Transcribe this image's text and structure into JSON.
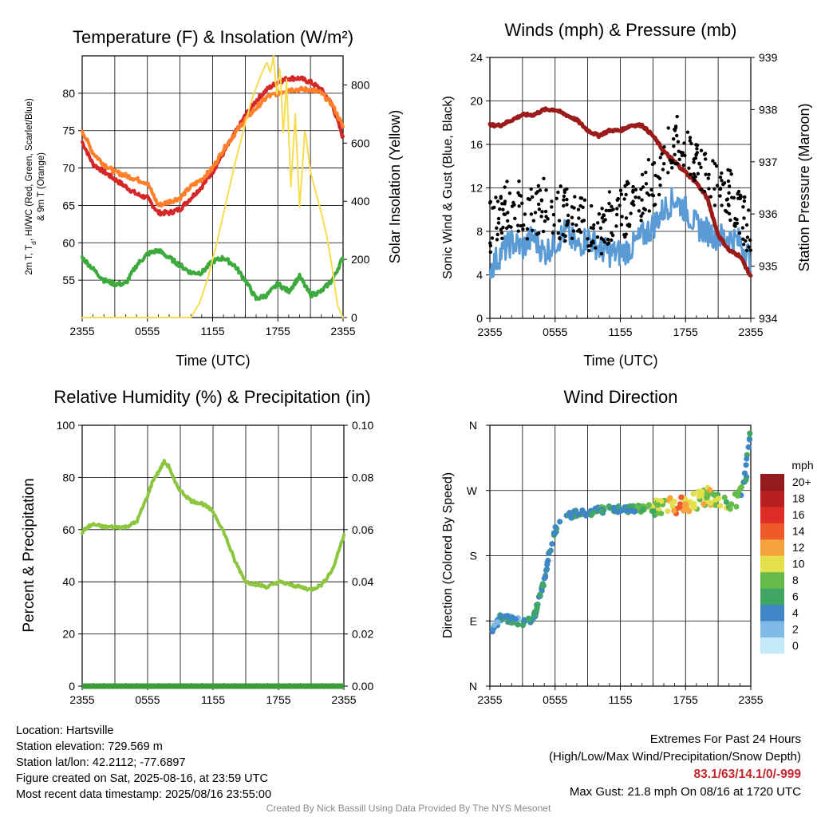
{
  "charts": {
    "temp": {
      "title": "Temperature (F) & Insolation (W/m²)",
      "xlabel": "Time (UTC)",
      "ylabel_line1": "2m T, T",
      "ylabel_sub": "d",
      "ylabel_line1_rest": ", HI/WC (Red, Green, Scarlet/Blue)",
      "ylabel_line2": "& 9m T (Orange)",
      "ylabel_right": "Solar Insolation (Yellow)"
    },
    "winds": {
      "title": "Winds (mph) & Pressure (mb)",
      "xlabel": "Time (UTC)",
      "ylabel": "Sonic Wind & Gust (Blue, Black)",
      "ylabel_right": "Station Pressure (Maroon)"
    },
    "rh": {
      "title": "Relative Humidity (%) & Precipitation (in)",
      "ylabel": "Percent & Precipitation"
    },
    "dir": {
      "title": "Wind Direction",
      "ylabel": "Direction (Colored By Speed)",
      "colorbar_title": "mph"
    }
  },
  "chart_data": [
    {
      "id": "temp",
      "type": "line",
      "x_ticks": [
        "2355",
        "0555",
        "1155",
        "1755",
        "2355"
      ],
      "x_range_hours": [
        0,
        24
      ],
      "ylim_left": [
        50,
        85
      ],
      "yticks_left": [
        55,
        60,
        65,
        70,
        75,
        80
      ],
      "ylim_right": [
        0,
        900
      ],
      "yticks_right": [
        0,
        200,
        400,
        600,
        800
      ],
      "grid": true,
      "series": [
        {
          "color": "#d62728",
          "axis": "left",
          "x": [
            0,
            1,
            2,
            3,
            4,
            5,
            6,
            7,
            8,
            9,
            10,
            11,
            12,
            13,
            14,
            15,
            16,
            17,
            18,
            19,
            20,
            21,
            22,
            23,
            24
          ],
          "values": [
            73.5,
            70.5,
            69.5,
            68.5,
            67.5,
            66.5,
            66.0,
            64.0,
            64.0,
            64.5,
            66.0,
            67.5,
            69.5,
            72.0,
            74.5,
            77.0,
            79.0,
            80.5,
            81.5,
            82.0,
            82.0,
            81.5,
            80.5,
            78.5,
            74.0
          ]
        },
        {
          "color": "#ff7f2a",
          "axis": "left",
          "x": [
            0,
            1,
            2,
            3,
            4,
            5,
            6,
            7,
            8,
            9,
            10,
            11,
            12,
            13,
            14,
            15,
            16,
            17,
            18,
            19,
            20,
            21,
            22,
            23,
            24
          ],
          "values": [
            75.0,
            72.0,
            70.5,
            69.5,
            69.0,
            68.5,
            68.0,
            65.0,
            65.5,
            66.0,
            67.5,
            68.5,
            70.0,
            72.5,
            74.5,
            76.5,
            78.0,
            79.5,
            80.0,
            80.5,
            80.5,
            80.5,
            80.0,
            78.5,
            75.5
          ]
        },
        {
          "color": "#3daa3d",
          "axis": "left",
          "x": [
            0,
            1,
            2,
            3,
            4,
            5,
            6,
            7,
            8,
            9,
            10,
            11,
            12,
            13,
            14,
            15,
            16,
            17,
            18,
            19,
            20,
            21,
            22,
            23,
            24
          ],
          "values": [
            58.0,
            56.5,
            55.0,
            54.5,
            54.5,
            57.0,
            58.5,
            59.0,
            58.0,
            57.0,
            56.0,
            56.0,
            57.5,
            58.0,
            57.0,
            55.0,
            52.5,
            53.0,
            54.5,
            53.5,
            55.5,
            53.0,
            53.5,
            55.0,
            58.0
          ]
        },
        {
          "color": "#f8dd50",
          "axis": "right",
          "x": [
            0,
            8,
            10.0,
            10.8,
            11.6,
            12.4,
            13.2,
            14.0,
            14.8,
            15.6,
            16.4,
            17.0,
            17.3,
            17.6,
            17.9,
            18.2,
            18.5,
            18.8,
            19.2,
            19.6,
            20.0,
            20.5,
            21.0,
            21.5,
            22.0,
            22.5,
            23.0,
            23.5,
            24
          ],
          "values": [
            0,
            0,
            0,
            50,
            140,
            260,
            390,
            520,
            640,
            750,
            830,
            880,
            840,
            900,
            760,
            870,
            620,
            820,
            450,
            700,
            380,
            650,
            500,
            430,
            360,
            280,
            170,
            40,
            0
          ]
        }
      ]
    },
    {
      "id": "winds",
      "type": "line",
      "x_ticks": [
        "2355",
        "0555",
        "1155",
        "1755",
        "2355"
      ],
      "x_range_hours": [
        0,
        24
      ],
      "ylim_left": [
        0,
        24
      ],
      "yticks_left": [
        0,
        4,
        8,
        12,
        16,
        20,
        24
      ],
      "ylim_right": [
        934,
        939
      ],
      "yticks_right": [
        934,
        935,
        936,
        937,
        938,
        939
      ],
      "grid": true,
      "series": [
        {
          "color": "#9b1b1b",
          "axis": "right",
          "x": [
            0,
            1,
            2,
            3,
            4,
            5,
            6,
            7,
            8,
            9,
            10,
            11,
            12,
            13,
            14,
            15,
            16,
            17,
            18,
            19,
            20,
            21,
            22,
            23,
            24
          ],
          "values": [
            937.7,
            937.7,
            937.8,
            937.9,
            937.9,
            938.0,
            938.0,
            937.9,
            937.8,
            937.6,
            937.5,
            937.6,
            937.6,
            937.7,
            937.7,
            937.5,
            937.2,
            937.0,
            936.8,
            936.6,
            936.3,
            935.6,
            935.3,
            935.2,
            934.8
          ]
        },
        {
          "color": "#5b9bd5",
          "axis": "left",
          "x": [
            0,
            1,
            2,
            3,
            4,
            5,
            6,
            7,
            8,
            9,
            10,
            11,
            12,
            13,
            14,
            15,
            16,
            17,
            18,
            19,
            20,
            21,
            22,
            23,
            24
          ],
          "values": [
            4.5,
            6.0,
            7.0,
            6.5,
            7.5,
            6.0,
            7.0,
            8.0,
            6.5,
            7.5,
            6.5,
            6.0,
            6.0,
            6.5,
            7.5,
            8.5,
            10.0,
            11.0,
            10.0,
            8.5,
            8.0,
            7.5,
            7.5,
            7.0,
            5.5
          ]
        },
        {
          "type": "scatter",
          "color": "#000000",
          "axis": "left",
          "name_hidden": "gust",
          "x": [
            0,
            1,
            2,
            3,
            4,
            5,
            6,
            7,
            8,
            9,
            10,
            11,
            12,
            13,
            14,
            15,
            16,
            17,
            18,
            19,
            20,
            21,
            22,
            23,
            24
          ],
          "values": [
            8.5,
            9.0,
            11.0,
            10.0,
            9.5,
            10.5,
            10.0,
            9.5,
            9.0,
            8.5,
            8.0,
            9.5,
            9.5,
            10.5,
            11.5,
            12.5,
            14.0,
            16.5,
            15.0,
            14.5,
            13.5,
            12.0,
            11.5,
            9.5,
            8.0
          ]
        }
      ]
    },
    {
      "id": "rh",
      "type": "line",
      "x_ticks": [
        "2355",
        "0555",
        "1155",
        "1755",
        "2355"
      ],
      "x_range_hours": [
        0,
        24
      ],
      "ylim_left": [
        0,
        100
      ],
      "yticks_left": [
        0,
        20,
        40,
        60,
        80,
        100
      ],
      "ylim_right": [
        0,
        0.1
      ],
      "yticks_right": [
        "0.00",
        "0.02",
        "0.04",
        "0.06",
        "0.08",
        "0.10"
      ],
      "grid": true,
      "series": [
        {
          "color": "#8cc63f",
          "axis": "left",
          "x": [
            0,
            0.5,
            1,
            2,
            3,
            4,
            5,
            6,
            6.5,
            7,
            7.5,
            8,
            8.5,
            9,
            10,
            11,
            12,
            13,
            14,
            15,
            16,
            17,
            18,
            19,
            20,
            21,
            22,
            23,
            24
          ],
          "values": [
            59,
            61,
            62,
            61,
            61,
            61,
            63,
            73,
            79,
            82,
            86,
            84,
            78,
            75,
            71,
            70,
            67,
            59,
            48,
            40,
            39,
            38,
            40,
            39,
            38,
            37,
            39,
            45,
            58
          ]
        },
        {
          "color": "#3a9d3a",
          "axis": "right",
          "x": [
            0,
            24
          ],
          "values": [
            0,
            0
          ]
        }
      ]
    },
    {
      "id": "dir",
      "type": "scatter",
      "x_ticks": [
        "2355",
        "0555",
        "1155",
        "1755",
        "2355"
      ],
      "x_range_hours": [
        0,
        24
      ],
      "y_ticks": [
        "N",
        "E",
        "S",
        "W",
        "N"
      ],
      "ylim_deg": [
        0,
        360
      ],
      "grid": true,
      "colorbar_ticks": [
        "0",
        "2",
        "4",
        "6",
        "8",
        "10",
        "12",
        "14",
        "16",
        "18",
        "20+"
      ],
      "colorbar_colors": [
        "#c6e9f7",
        "#7fbbe6",
        "#3f86c6",
        "#3fa664",
        "#66bb4a",
        "#e3e04c",
        "#f7a33d",
        "#ee5a2a",
        "#de2d26",
        "#b81f1f",
        "#921b1b"
      ],
      "points": {
        "x": [
          0,
          1,
          2,
          3,
          4,
          5,
          5.5,
          6,
          6.5,
          7,
          8,
          9,
          10,
          11,
          12,
          13,
          14,
          15,
          16,
          17,
          18,
          19,
          20,
          21,
          22,
          23,
          23.5,
          24
        ],
        "deg": [
          75,
          95,
          92,
          88,
          92,
          145,
          185,
          215,
          225,
          232,
          240,
          240,
          242,
          245,
          244,
          244,
          245,
          246,
          250,
          248,
          252,
          255,
          262,
          258,
          250,
          262,
          285,
          360
        ],
        "speed": [
          3,
          5,
          5,
          6,
          6,
          6,
          6,
          6,
          6,
          6,
          6,
          6,
          6,
          7,
          6,
          6,
          8,
          9,
          10,
          13,
          12,
          10,
          11,
          9,
          9,
          7,
          6,
          4
        ]
      }
    }
  ],
  "footer": {
    "location": "Location: Hartsville",
    "elevation": "Station elevation: 729.569 m",
    "latlon": "Station lat/lon: 42.2112; -77.6897",
    "created": "Figure created on Sat, 2025-08-16, at 23:59 UTC",
    "recent": "Most recent data timestamp: 2025/08/16 23:55:00",
    "extremes_title": "Extremes For Past 24 Hours",
    "extremes_legend": "(High/Low/Max Wind/Precipitation/Snow Depth)",
    "extremes_values": "83.1/63/14.1/0/-999",
    "max_gust": "Max Gust: 21.8 mph On 08/16 at 1720 UTC",
    "credit": "Created By Nick Bassill Using Data Provided By The NYS Mesonet"
  }
}
